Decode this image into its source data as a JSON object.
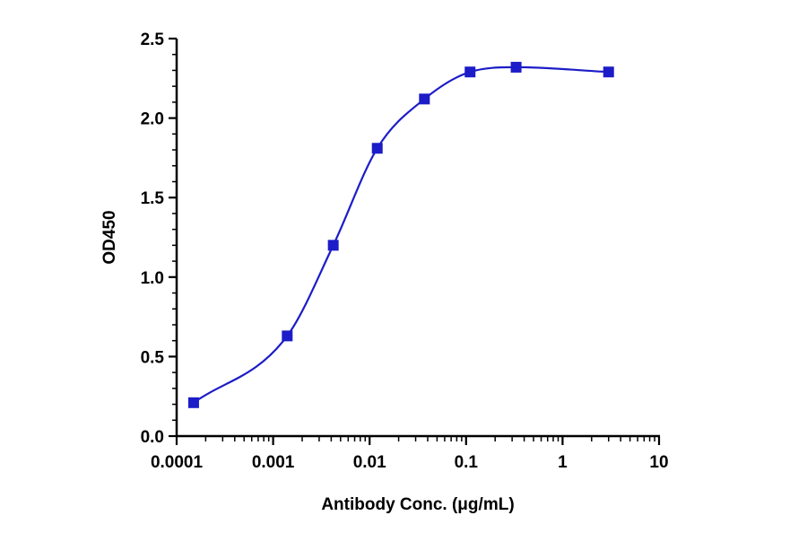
{
  "chart_data": {
    "type": "scatter",
    "xscale": "log",
    "xlim": [
      0.0001,
      10
    ],
    "ylim": [
      0.0,
      2.5
    ],
    "xlabel": "Antibody Conc. (μg/mL)",
    "ylabel": "OD450",
    "x_ticks": [
      {
        "value": 0.0001,
        "label": "0.0001"
      },
      {
        "value": 0.001,
        "label": "0.001"
      },
      {
        "value": 0.01,
        "label": "0.01"
      },
      {
        "value": 0.1,
        "label": "0.1"
      },
      {
        "value": 1,
        "label": "1"
      },
      {
        "value": 10,
        "label": "10"
      }
    ],
    "y_ticks": [
      {
        "value": 0.0,
        "label": "0.0"
      },
      {
        "value": 0.5,
        "label": "0.5"
      },
      {
        "value": 1.0,
        "label": "1.0"
      },
      {
        "value": 1.5,
        "label": "1.5"
      },
      {
        "value": 2.0,
        "label": "2.0"
      },
      {
        "value": 2.5,
        "label": "2.5"
      }
    ],
    "series": [
      {
        "color": "#1c1cc8",
        "marker": "square",
        "fit": "4PL sigmoid",
        "points": [
          {
            "x": 0.00015,
            "y": 0.21
          },
          {
            "x": 0.0014,
            "y": 0.63
          },
          {
            "x": 0.0042,
            "y": 1.2
          },
          {
            "x": 0.012,
            "y": 1.81
          },
          {
            "x": 0.037,
            "y": 2.12
          },
          {
            "x": 0.11,
            "y": 2.29
          },
          {
            "x": 0.33,
            "y": 2.32
          },
          {
            "x": 3.0,
            "y": 2.29
          }
        ]
      }
    ],
    "grid": false,
    "legend": "none"
  }
}
